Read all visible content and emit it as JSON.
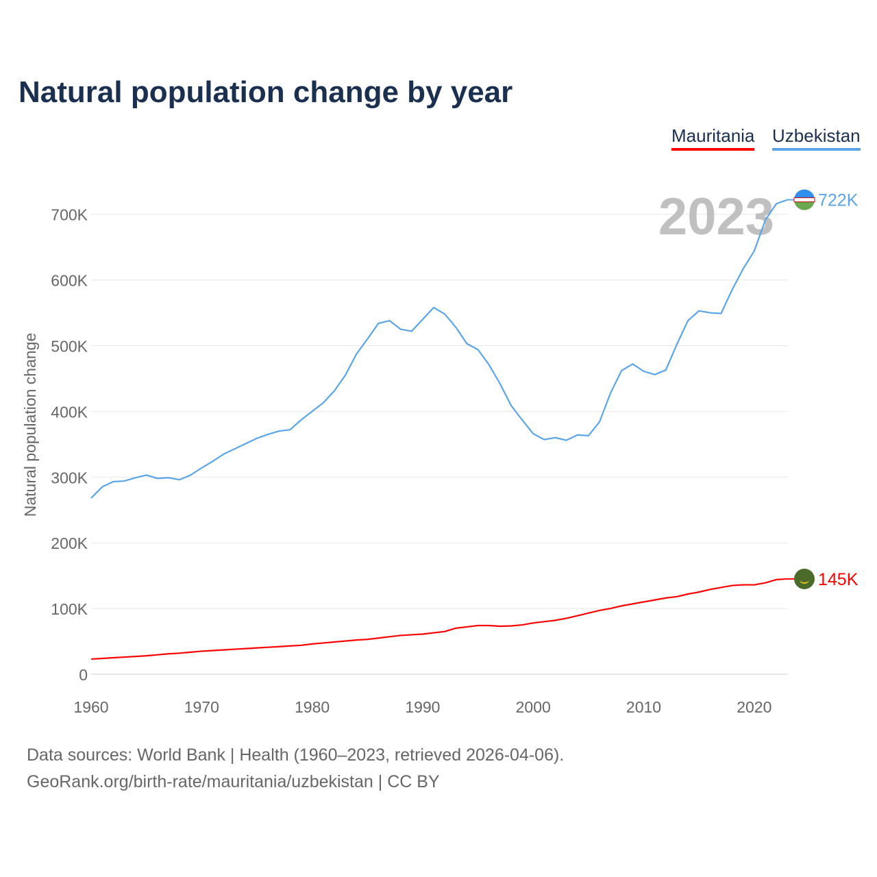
{
  "chart_data": {
    "type": "line",
    "title": "Natural population change by year",
    "ylabel": "Natural population change",
    "xlabel": "",
    "ylim": [
      0,
      700000
    ],
    "xlim": [
      1960,
      2023
    ],
    "grid": true,
    "legend_position": "top-right",
    "yticks": [
      {
        "v": 0,
        "label": "0"
      },
      {
        "v": 100000,
        "label": "100K"
      },
      {
        "v": 200000,
        "label": "200K"
      },
      {
        "v": 300000,
        "label": "300K"
      },
      {
        "v": 400000,
        "label": "400K"
      },
      {
        "v": 500000,
        "label": "500K"
      },
      {
        "v": 600000,
        "label": "600K"
      },
      {
        "v": 700000,
        "label": "700K"
      }
    ],
    "xticks": [
      1960,
      1970,
      1980,
      1990,
      2000,
      2010,
      2020
    ],
    "year_label": "2023",
    "start_year": 1960,
    "series": [
      {
        "name": "Mauritania",
        "color": "#ff0000",
        "end_label": "145K",
        "values": [
          23,
          24,
          25,
          26,
          27,
          28,
          29.5,
          31,
          32,
          33.5,
          35,
          36,
          37,
          38,
          39,
          40,
          41,
          42,
          43,
          44,
          46,
          47.5,
          49,
          50.5,
          52,
          53,
          55,
          57,
          59,
          60,
          61,
          63,
          65,
          70,
          72,
          74,
          74,
          73,
          73.5,
          75,
          78,
          80,
          82,
          85,
          89,
          93,
          97,
          100,
          104,
          107,
          110,
          113,
          116,
          118,
          122,
          125,
          129,
          132,
          135,
          136,
          136,
          139,
          144,
          145
        ]
      },
      {
        "name": "Uzbekistan",
        "color": "#5aa5ea",
        "end_label": "722K",
        "values": [
          268,
          285,
          293,
          294,
          299,
          303,
          298,
          299,
          296,
          303,
          314,
          324,
          335,
          343,
          351,
          359,
          365,
          370,
          372,
          387,
          400,
          413,
          431,
          455,
          487,
          510,
          534,
          538,
          525,
          522,
          540,
          558,
          548,
          528,
          503,
          494,
          471,
          442,
          409,
          387,
          366,
          357,
          360,
          356,
          364,
          363,
          384,
          428,
          462,
          472,
          461,
          456,
          463,
          502,
          538,
          553,
          550,
          549,
          585,
          617,
          644,
          691,
          716,
          722
        ]
      }
    ]
  },
  "sources": {
    "line1": "Data sources: World Bank | Health (1960–2023, retrieved 2026-04-06).",
    "line2": "GeoRank.org/birth-rate/mauritania/uzbekistan | CC BY"
  }
}
